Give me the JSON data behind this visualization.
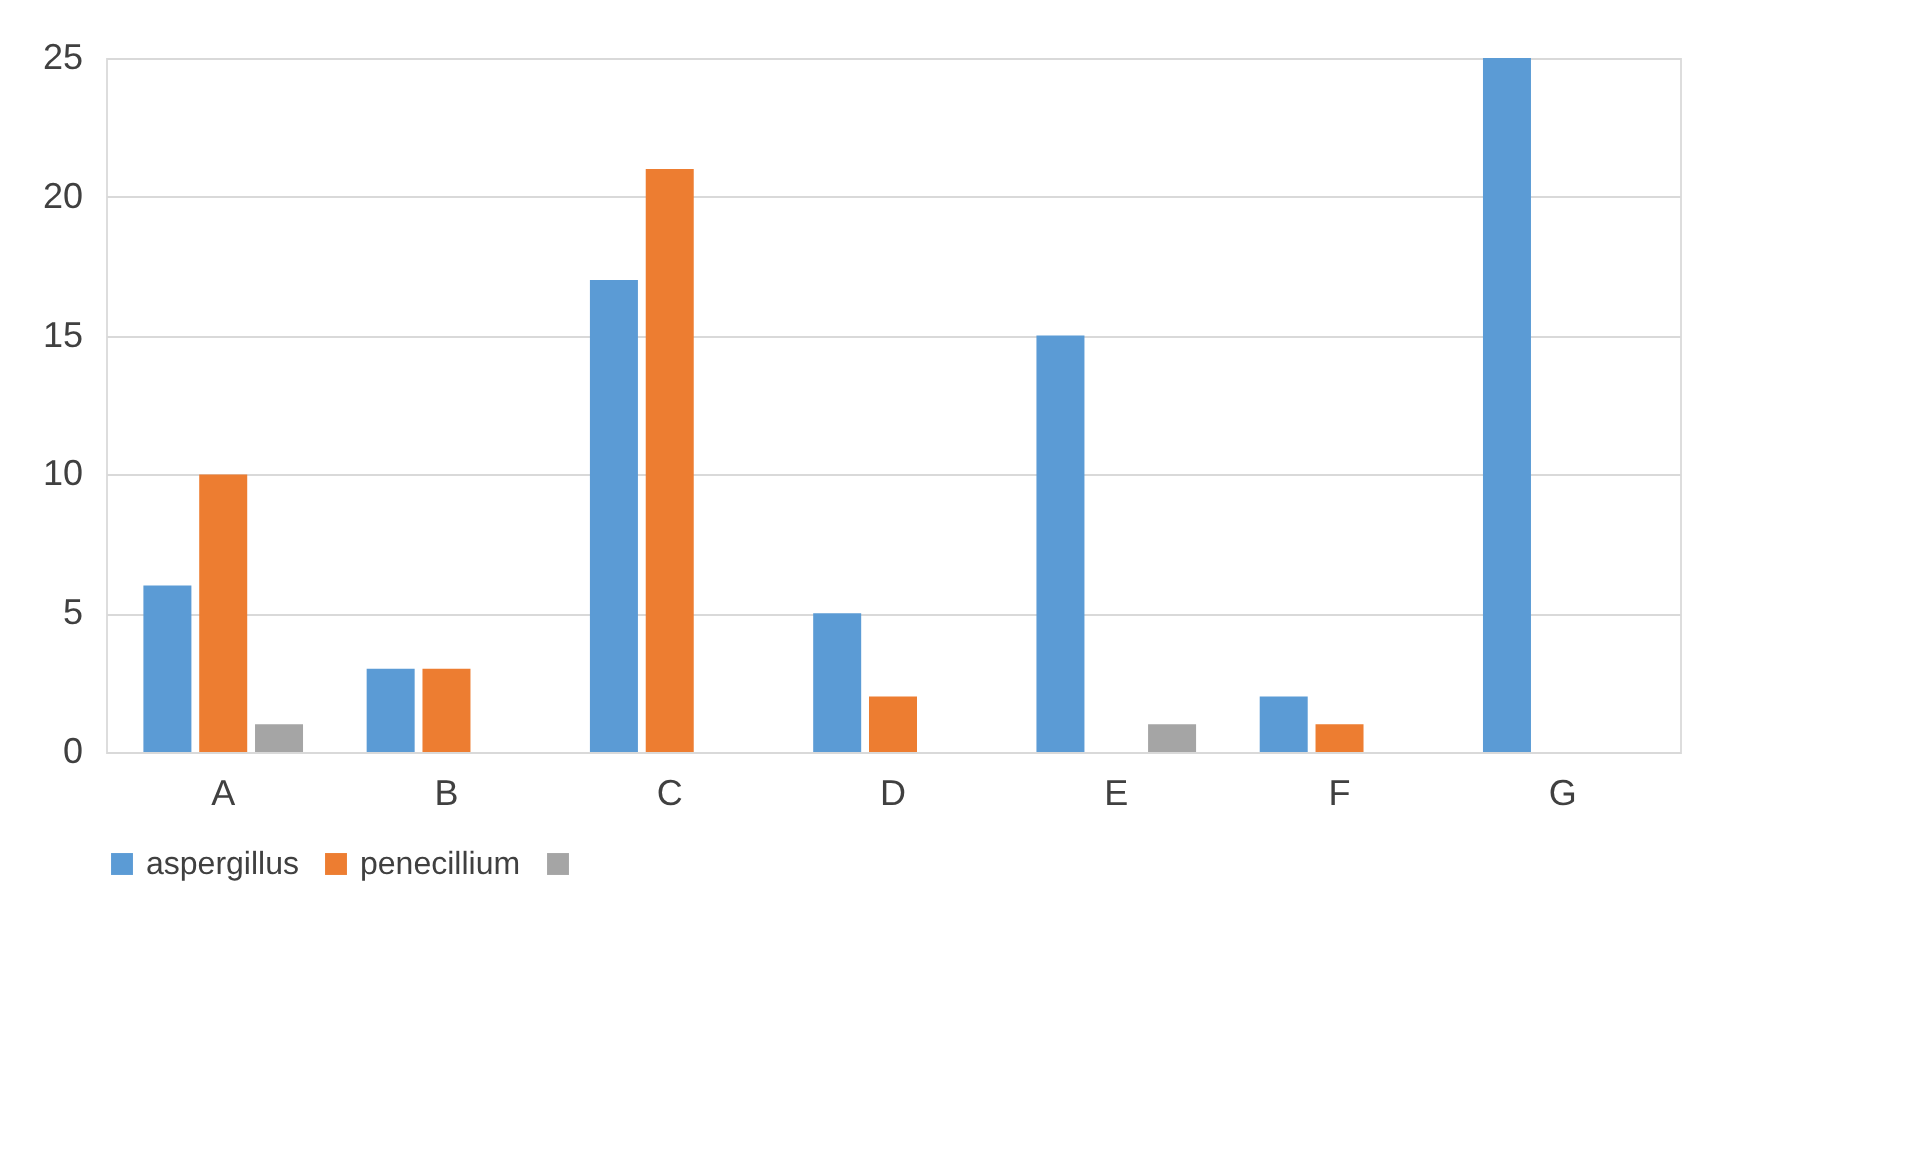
{
  "chart_data": {
    "type": "bar",
    "categories": [
      "A",
      "B",
      "C",
      "D",
      "E",
      "F",
      "G"
    ],
    "series": [
      {
        "name": "aspergillus",
        "color": "#5b9bd5",
        "values": [
          6,
          3,
          17,
          5,
          15,
          2,
          25
        ]
      },
      {
        "name": "penecillium",
        "color": "#ed7d31",
        "values": [
          10,
          3,
          21,
          2,
          0,
          1,
          0
        ]
      },
      {
        "color": "#a5a5a5",
        "values": [
          1,
          0,
          0,
          0,
          1,
          0,
          0
        ]
      }
    ],
    "ylim": [
      0,
      25
    ],
    "yticks": [
      0,
      5,
      10,
      15,
      20,
      25
    ],
    "grid": "y",
    "legend": "bottom"
  }
}
